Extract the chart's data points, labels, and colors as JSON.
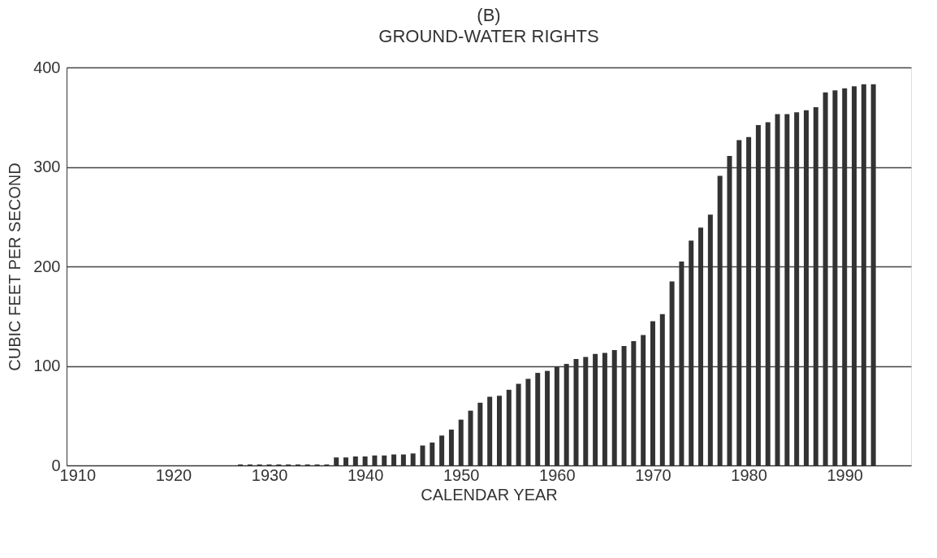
{
  "chart_data": {
    "type": "bar",
    "title": "(B)",
    "subtitle": "GROUND-WATER RIGHTS",
    "xlabel": "CALENDAR YEAR",
    "ylabel": "CUBIC FEET PER SECOND",
    "x": [
      1927,
      1928,
      1929,
      1930,
      1931,
      1932,
      1933,
      1934,
      1935,
      1936,
      1937,
      1938,
      1939,
      1940,
      1941,
      1942,
      1943,
      1944,
      1945,
      1946,
      1947,
      1948,
      1949,
      1950,
      1951,
      1952,
      1953,
      1954,
      1955,
      1956,
      1957,
      1958,
      1959,
      1960,
      1961,
      1962,
      1963,
      1964,
      1965,
      1966,
      1967,
      1968,
      1969,
      1970,
      1971,
      1972,
      1973,
      1974,
      1975,
      1976,
      1977,
      1978,
      1979,
      1980,
      1981,
      1982,
      1983,
      1984,
      1985,
      1986,
      1987,
      1988,
      1989,
      1990,
      1991,
      1992,
      1993
    ],
    "values": [
      1,
      1,
      1,
      1,
      1,
      1,
      1,
      1,
      1,
      1,
      8,
      8,
      9,
      9,
      10,
      10,
      11,
      11,
      12,
      20,
      23,
      30,
      36,
      46,
      55,
      63,
      69,
      70,
      76,
      82,
      87,
      93,
      95,
      99,
      102,
      107,
      109,
      112,
      113,
      116,
      120,
      125,
      131,
      145,
      152,
      185,
      205,
      226,
      239,
      252,
      291,
      311,
      327,
      330,
      342,
      345,
      353,
      353,
      355,
      357,
      360,
      375,
      377,
      379,
      381,
      383,
      383
    ],
    "color": "#333333",
    "xlim": [
      1909.3,
      1996.5
    ],
    "xticks": [
      1910,
      1920,
      1930,
      1940,
      1950,
      1960,
      1970,
      1980,
      1990
    ],
    "ylim": [
      0,
      400
    ],
    "yticks": [
      0,
      100,
      200,
      300,
      400
    ],
    "grid": "y"
  }
}
